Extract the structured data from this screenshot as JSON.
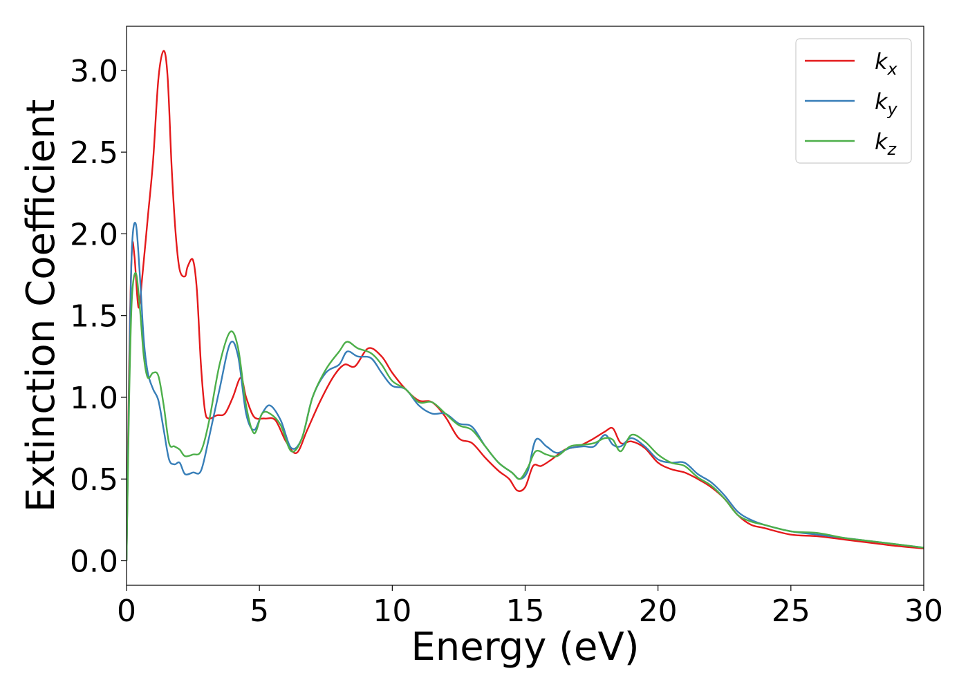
{
  "chart_data": {
    "type": "line",
    "xlabel": "Energy (eV)",
    "ylabel": "Extinction Coefficient",
    "xlim": [
      0,
      30
    ],
    "ylim": [
      -0.15,
      3.27
    ],
    "xticks": [
      "0",
      "5",
      "10",
      "15",
      "20",
      "25",
      "30"
    ],
    "yticks": [
      "0.0",
      "0.5",
      "1.0",
      "1.5",
      "2.0",
      "2.5",
      "3.0"
    ],
    "grid": false,
    "legend_position": "top-right",
    "series": [
      {
        "name": "k_x",
        "label_main": "k",
        "label_sub": "x",
        "color": "#e41a1c",
        "x": [
          0,
          0.1,
          0.2,
          0.3,
          0.45,
          0.6,
          0.8,
          1.0,
          1.2,
          1.4,
          1.55,
          1.7,
          1.85,
          2.0,
          2.2,
          2.3,
          2.5,
          2.65,
          2.8,
          2.95,
          3.1,
          3.4,
          3.7,
          4.0,
          4.3,
          4.5,
          4.8,
          5.2,
          5.6,
          6.0,
          6.4,
          6.8,
          7.3,
          7.8,
          8.2,
          8.6,
          9.1,
          9.6,
          10.0,
          10.5,
          11.0,
          11.5,
          12.0,
          12.5,
          13.0,
          13.5,
          14.0,
          14.4,
          14.7,
          15.0,
          15.3,
          15.6,
          16.0,
          16.5,
          17.0,
          17.5,
          18.0,
          18.3,
          18.6,
          19.0,
          19.5,
          20.0,
          20.5,
          21.0,
          21.5,
          22.0,
          22.5,
          23.0,
          23.5,
          24.0,
          25.0,
          26.0,
          27.0,
          28.0,
          29.0,
          30.0
        ],
        "y": [
          0.0,
          1.2,
          1.9,
          1.86,
          1.55,
          1.75,
          2.1,
          2.45,
          2.95,
          3.12,
          2.95,
          2.4,
          2.0,
          1.78,
          1.74,
          1.8,
          1.84,
          1.65,
          1.2,
          0.92,
          0.87,
          0.89,
          0.9,
          1.0,
          1.12,
          1.0,
          0.88,
          0.87,
          0.86,
          0.73,
          0.66,
          0.8,
          0.98,
          1.13,
          1.2,
          1.19,
          1.3,
          1.25,
          1.15,
          1.05,
          0.98,
          0.97,
          0.88,
          0.75,
          0.72,
          0.63,
          0.55,
          0.5,
          0.43,
          0.45,
          0.58,
          0.58,
          0.62,
          0.68,
          0.7,
          0.74,
          0.79,
          0.81,
          0.72,
          0.73,
          0.69,
          0.6,
          0.56,
          0.54,
          0.5,
          0.45,
          0.38,
          0.28,
          0.22,
          0.2,
          0.16,
          0.15,
          0.13,
          0.11,
          0.09,
          0.075
        ]
      },
      {
        "name": "k_y",
        "label_main": "k",
        "label_sub": "y",
        "color": "#377eb8",
        "x": [
          0,
          0.1,
          0.2,
          0.35,
          0.5,
          0.65,
          0.8,
          1.0,
          1.2,
          1.4,
          1.6,
          1.8,
          2.0,
          2.2,
          2.5,
          2.8,
          3.1,
          3.5,
          3.9,
          4.2,
          4.5,
          4.8,
          5.1,
          5.4,
          5.8,
          6.2,
          6.6,
          7.0,
          7.5,
          8.0,
          8.3,
          8.7,
          9.2,
          9.6,
          10.0,
          10.5,
          11.0,
          11.5,
          12.0,
          12.5,
          13.0,
          13.5,
          14.0,
          14.5,
          14.8,
          15.1,
          15.4,
          15.8,
          16.2,
          16.7,
          17.2,
          17.6,
          18.0,
          18.3,
          18.6,
          19.0,
          19.5,
          20.0,
          20.5,
          21.0,
          21.5,
          22.0,
          22.5,
          23.0,
          23.5,
          24.0,
          25.0,
          26.0,
          27.0,
          28.0,
          29.0,
          30.0
        ],
        "y": [
          0.0,
          1.1,
          1.9,
          2.06,
          1.75,
          1.35,
          1.15,
          1.05,
          0.98,
          0.8,
          0.62,
          0.59,
          0.6,
          0.53,
          0.54,
          0.55,
          0.75,
          1.05,
          1.33,
          1.25,
          0.9,
          0.8,
          0.9,
          0.95,
          0.86,
          0.69,
          0.75,
          1.0,
          1.15,
          1.2,
          1.28,
          1.25,
          1.24,
          1.15,
          1.07,
          1.05,
          0.95,
          0.9,
          0.9,
          0.84,
          0.82,
          0.7,
          0.6,
          0.54,
          0.5,
          0.55,
          0.74,
          0.7,
          0.66,
          0.69,
          0.7,
          0.7,
          0.77,
          0.71,
          0.7,
          0.75,
          0.7,
          0.62,
          0.6,
          0.6,
          0.53,
          0.48,
          0.4,
          0.3,
          0.25,
          0.22,
          0.18,
          0.16,
          0.14,
          0.12,
          0.1,
          0.08
        ]
      },
      {
        "name": "k_z",
        "label_main": "k",
        "label_sub": "z",
        "color": "#4daf4a",
        "x": [
          0,
          0.1,
          0.2,
          0.35,
          0.5,
          0.65,
          0.8,
          1.0,
          1.2,
          1.4,
          1.6,
          1.8,
          2.0,
          2.2,
          2.5,
          2.8,
          3.1,
          3.5,
          3.9,
          4.2,
          4.5,
          4.8,
          5.1,
          5.4,
          5.8,
          6.2,
          6.6,
          7.0,
          7.5,
          8.0,
          8.3,
          8.7,
          9.2,
          9.6,
          10.0,
          10.5,
          11.0,
          11.5,
          12.0,
          12.5,
          13.0,
          13.5,
          14.0,
          14.5,
          14.8,
          15.1,
          15.4,
          15.8,
          16.2,
          16.7,
          17.2,
          17.6,
          18.0,
          18.3,
          18.6,
          19.0,
          19.5,
          20.0,
          20.5,
          21.0,
          21.5,
          22.0,
          22.5,
          23.0,
          23.5,
          24.0,
          25.0,
          26.0,
          27.0,
          28.0,
          29.0,
          30.0
        ],
        "y": [
          0.0,
          1.0,
          1.6,
          1.76,
          1.55,
          1.25,
          1.12,
          1.15,
          1.13,
          0.95,
          0.72,
          0.7,
          0.68,
          0.64,
          0.65,
          0.67,
          0.85,
          1.2,
          1.4,
          1.3,
          0.95,
          0.78,
          0.9,
          0.9,
          0.83,
          0.67,
          0.75,
          1.0,
          1.17,
          1.28,
          1.34,
          1.3,
          1.27,
          1.2,
          1.1,
          1.05,
          0.97,
          0.97,
          0.9,
          0.83,
          0.8,
          0.7,
          0.6,
          0.54,
          0.5,
          0.57,
          0.67,
          0.65,
          0.64,
          0.7,
          0.71,
          0.72,
          0.75,
          0.74,
          0.67,
          0.77,
          0.73,
          0.65,
          0.6,
          0.58,
          0.51,
          0.46,
          0.38,
          0.28,
          0.24,
          0.22,
          0.18,
          0.17,
          0.14,
          0.12,
          0.1,
          0.08
        ]
      }
    ]
  }
}
